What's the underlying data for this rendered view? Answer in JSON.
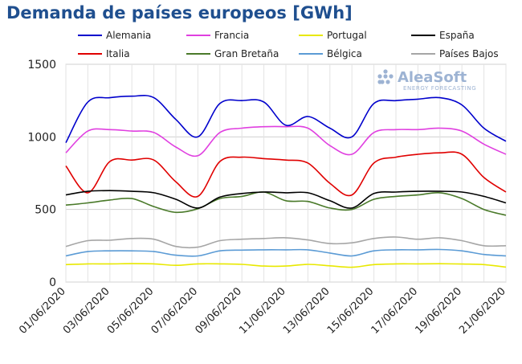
{
  "chart_data": {
    "type": "line",
    "title": "Demanda de países europeos [GWh]",
    "xlabel": "",
    "ylabel": "",
    "ylim": [
      0,
      1500
    ],
    "yticks": [
      0,
      500,
      1000,
      1500
    ],
    "grid": true,
    "legend_position": "top",
    "x": [
      "01/06/2020",
      "02/06/2020",
      "03/06/2020",
      "04/06/2020",
      "05/06/2020",
      "06/06/2020",
      "07/06/2020",
      "08/06/2020",
      "09/06/2020",
      "10/06/2020",
      "11/06/2020",
      "12/06/2020",
      "13/06/2020",
      "14/06/2020",
      "15/06/2020",
      "16/06/2020",
      "17/06/2020",
      "18/06/2020",
      "19/06/2020",
      "20/06/2020",
      "21/06/2020"
    ],
    "xtick_labels": [
      "01/06/2020",
      "03/06/2020",
      "05/06/2020",
      "07/06/2020",
      "09/06/2020",
      "11/06/2020",
      "13/06/2020",
      "15/06/2020",
      "17/06/2020",
      "19/06/2020",
      "21/06/2020"
    ],
    "series": [
      {
        "name": "Alemania",
        "color": "#0000cc",
        "values": [
          960,
          1240,
          1270,
          1280,
          1270,
          1120,
          1000,
          1230,
          1250,
          1240,
          1080,
          1140,
          1060,
          1000,
          1230,
          1250,
          1260,
          1270,
          1220,
          1060,
          970
        ]
      },
      {
        "name": "Francia",
        "color": "#e040e0",
        "values": [
          890,
          1040,
          1050,
          1040,
          1030,
          930,
          870,
          1030,
          1060,
          1070,
          1070,
          1060,
          940,
          880,
          1030,
          1050,
          1050,
          1060,
          1040,
          950,
          880
        ]
      },
      {
        "name": "Portugal",
        "color": "#e8e800",
        "values": [
          120,
          125,
          125,
          127,
          125,
          115,
          125,
          125,
          122,
          110,
          110,
          122,
          112,
          102,
          120,
          125,
          125,
          126,
          124,
          120,
          103
        ]
      },
      {
        "name": "España",
        "color": "#000000",
        "values": [
          600,
          625,
          630,
          625,
          615,
          570,
          510,
          585,
          610,
          620,
          615,
          615,
          560,
          510,
          610,
          620,
          625,
          625,
          620,
          590,
          545
        ]
      },
      {
        "name": "Italia",
        "color": "#e00000",
        "values": [
          800,
          615,
          830,
          840,
          840,
          690,
          590,
          830,
          860,
          850,
          840,
          820,
          680,
          600,
          820,
          860,
          880,
          890,
          880,
          720,
          620
        ]
      },
      {
        "name": "Gran Bretaña",
        "color": "#4a7a2a",
        "values": [
          530,
          545,
          565,
          575,
          520,
          480,
          505,
          575,
          590,
          620,
          560,
          555,
          510,
          500,
          570,
          590,
          600,
          615,
          575,
          500,
          460
        ]
      },
      {
        "name": "Bélgica",
        "color": "#5b9bd5",
        "values": [
          180,
          210,
          215,
          215,
          210,
          185,
          180,
          215,
          220,
          222,
          222,
          222,
          200,
          180,
          215,
          222,
          222,
          224,
          215,
          190,
          180
        ]
      },
      {
        "name": "Países Bajos",
        "color": "#a6a6a6",
        "values": [
          245,
          285,
          288,
          300,
          295,
          245,
          240,
          285,
          295,
          300,
          305,
          290,
          265,
          270,
          300,
          310,
          295,
          305,
          285,
          250,
          250
        ]
      }
    ]
  },
  "watermark": {
    "brand": "AleaSoft",
    "tagline": "ENERGY FORECASTING"
  }
}
